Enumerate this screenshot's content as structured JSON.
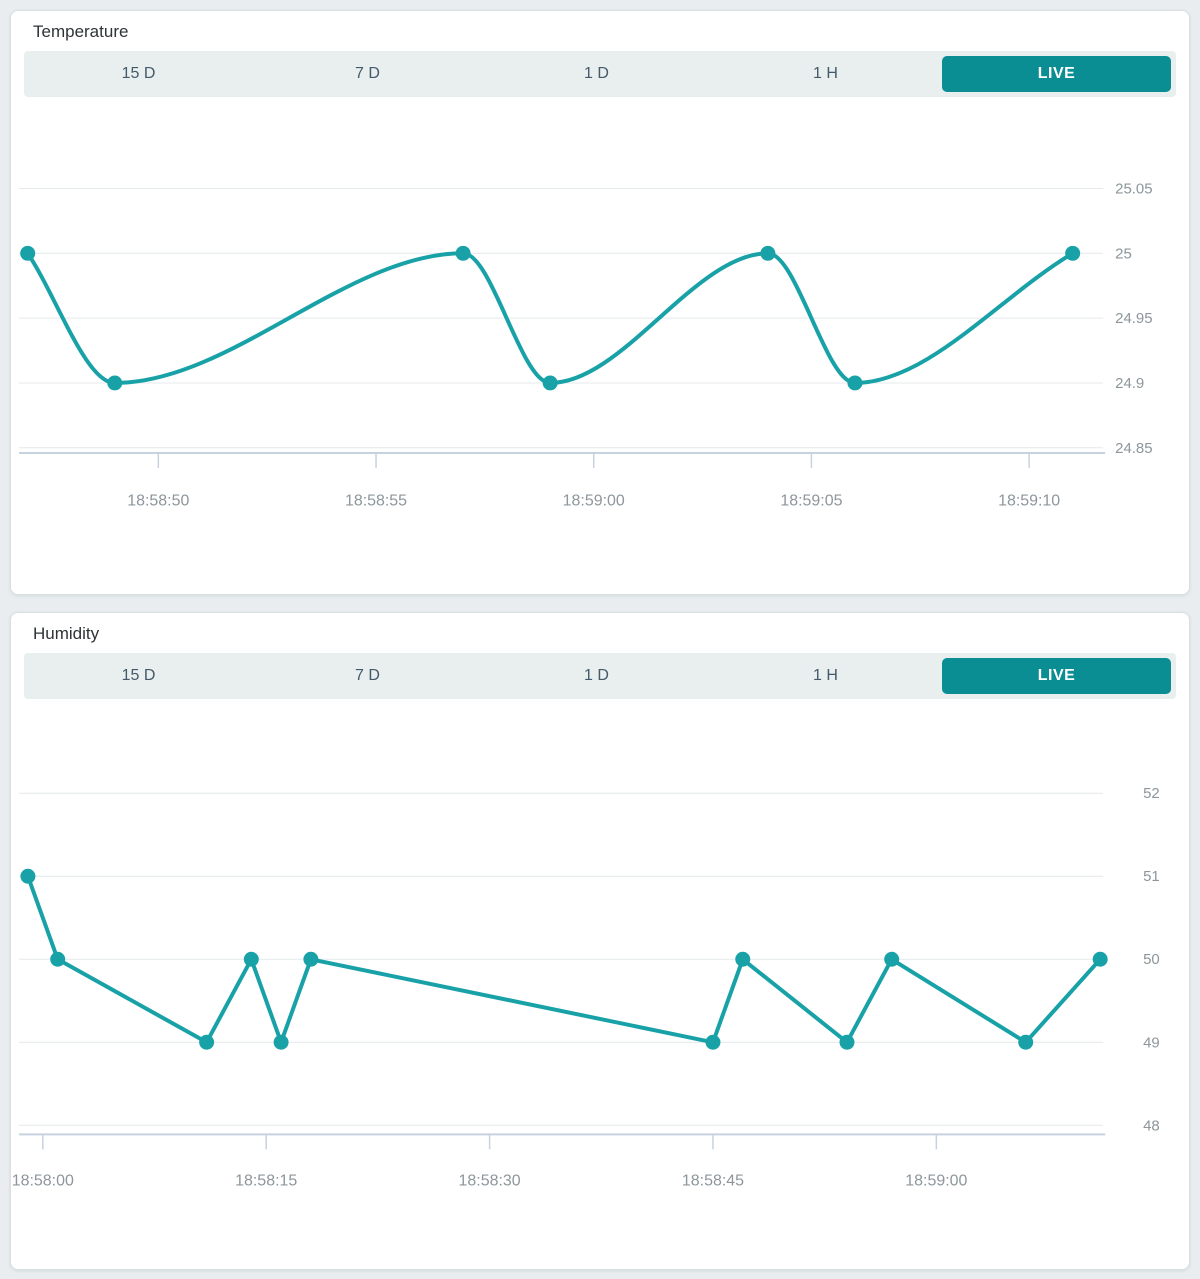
{
  "colors": {
    "accent_line": "#18a2a8",
    "live_button_bg": "#0a8d93",
    "live_button_text": "#ffffff",
    "grid_line": "#e4e9ec",
    "axis_line": "#c6d2df",
    "axis_label": "#8c969b",
    "range_label": "#44596a",
    "panel_bg": "#ffffff",
    "page_bg": "#e9edef"
  },
  "panels": [
    {
      "title": "Temperature",
      "ranges": [
        "15 D",
        "7 D",
        "1 D",
        "1 H"
      ],
      "live_label": "LIVE",
      "chart_data": {
        "type": "line",
        "smooth": true,
        "grid": true,
        "legend": false,
        "y_axis_position": "right",
        "series": [
          {
            "name": "Temperature",
            "x": [
              "18:58:47",
              "18:58:49",
              "18:58:57",
              "18:58:59",
              "18:59:04",
              "18:59:06",
              "18:59:11"
            ],
            "y": [
              25,
              24.9,
              25,
              24.9,
              25,
              24.9,
              25
            ]
          }
        ],
        "x_ticks": [
          "18:58:50",
          "18:58:55",
          "18:59:00",
          "18:59:05",
          "18:59:10"
        ],
        "y_ticks": [
          25.05,
          25,
          24.95,
          24.9,
          24.85
        ],
        "xlim": [
          "18:58:46.8",
          "18:59:11.7"
        ],
        "ylim": [
          24.846,
          25.11
        ]
      }
    },
    {
      "title": "Humidity",
      "ranges": [
        "15 D",
        "7 D",
        "1 D",
        "1 H"
      ],
      "live_label": "LIVE",
      "chart_data": {
        "type": "line",
        "smooth": false,
        "grid": true,
        "legend": false,
        "y_axis_position": "right",
        "series": [
          {
            "name": "Humidity",
            "x": [
              "18:57:59",
              "18:58:01",
              "18:58:11",
              "18:58:14",
              "18:58:16",
              "18:58:18",
              "18:58:45",
              "18:58:47",
              "18:58:54",
              "18:58:57",
              "18:59:06",
              "18:59:11"
            ],
            "y": [
              51,
              50,
              49,
              50,
              49,
              50,
              49,
              50,
              49,
              50,
              49,
              50
            ]
          }
        ],
        "x_ticks": [
          "18:58:00",
          "18:58:15",
          "18:58:30",
          "18:58:45",
          "18:59:00"
        ],
        "y_ticks": [
          52,
          51,
          50,
          49,
          48
        ],
        "xlim": [
          "18:57:58.4",
          "18:59:11.2"
        ],
        "ylim": [
          47.89,
          52.37
        ]
      }
    }
  ]
}
